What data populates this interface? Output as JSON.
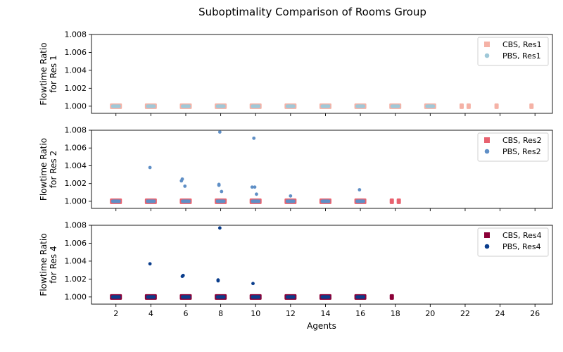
{
  "chart_data": {
    "type": "scatter",
    "title": "Suboptimality Comparison of Rooms Group",
    "xlabel": "Agents",
    "xlim": [
      0.6,
      27.0
    ],
    "xticks": [
      2,
      4,
      6,
      8,
      10,
      12,
      14,
      16,
      18,
      20,
      22,
      24,
      26
    ],
    "panels": [
      {
        "ylabel": "Flowtime Ratio for Res 1",
        "ylabel_lines": [
          "Flowtime Ratio",
          "for Res 1"
        ],
        "ylim": [
          0.9992,
          1.008
        ],
        "yticks": [
          "1.000",
          "1.002",
          "1.004",
          "1.006",
          "1.008"
        ],
        "legend_position": "top-right",
        "series": [
          {
            "name": "CBS, Res1",
            "marker": "square",
            "color": "#f5b2a6",
            "points": [
              [
                2,
                1.0
              ],
              [
                4,
                1.0
              ],
              [
                6,
                1.0
              ],
              [
                8,
                1.0
              ],
              [
                10,
                1.0
              ],
              [
                12,
                1.0
              ],
              [
                14,
                1.0
              ],
              [
                16,
                1.0
              ],
              [
                18,
                1.0
              ],
              [
                20,
                1.0
              ],
              [
                21.8,
                1.0
              ],
              [
                22.2,
                1.0
              ],
              [
                23.8,
                1.0
              ],
              [
                25.8,
                1.0
              ]
            ]
          },
          {
            "name": "PBS, Res1",
            "marker": "circle",
            "color": "#9fc8d8",
            "points": [
              [
                2,
                1.0
              ],
              [
                4,
                1.0
              ],
              [
                6,
                1.0
              ],
              [
                8,
                1.0
              ],
              [
                10,
                1.0
              ],
              [
                12,
                1.0
              ],
              [
                14,
                1.0
              ],
              [
                16,
                1.0
              ],
              [
                18,
                1.0
              ],
              [
                20,
                1.0
              ]
            ]
          }
        ]
      },
      {
        "ylabel": "Flowtime Ratio for Res 2",
        "ylabel_lines": [
          "Flowtime Ratio",
          "for Res 2"
        ],
        "ylim": [
          0.9992,
          1.008
        ],
        "yticks": [
          "1.000",
          "1.002",
          "1.004",
          "1.006",
          "1.008"
        ],
        "legend_position": "top-right",
        "series": [
          {
            "name": "CBS, Res2",
            "marker": "square",
            "color": "#e8626f",
            "points": [
              [
                2,
                1.0
              ],
              [
                4,
                1.0
              ],
              [
                6,
                1.0
              ],
              [
                8,
                1.0
              ],
              [
                10,
                1.0
              ],
              [
                12,
                1.0
              ],
              [
                14,
                1.0
              ],
              [
                16,
                1.0
              ],
              [
                17.8,
                1.0
              ],
              [
                18.2,
                1.0
              ]
            ]
          },
          {
            "name": "PBS, Res2",
            "marker": "circle",
            "color": "#5f8fc6",
            "points": [
              [
                2,
                1.0
              ],
              [
                4,
                1.0
              ],
              [
                6,
                1.0
              ],
              [
                8,
                1.0
              ],
              [
                10,
                1.0
              ],
              [
                12,
                1.0
              ],
              [
                14,
                1.0
              ],
              [
                16,
                1.0
              ],
              [
                3.95,
                1.0038
              ],
              [
                5.8,
                1.0025
              ],
              [
                5.75,
                1.0023
              ],
              [
                5.95,
                1.0017
              ],
              [
                7.9,
                1.0019
              ],
              [
                7.9,
                1.0018
              ],
              [
                8.05,
                1.0011
              ],
              [
                7.95,
                1.0078
              ],
              [
                9.9,
                1.0071
              ],
              [
                9.8,
                1.0016
              ],
              [
                9.95,
                1.0016
              ],
              [
                10.05,
                1.0008
              ],
              [
                12.0,
                1.0006
              ],
              [
                15.95,
                1.0013
              ]
            ]
          }
        ]
      },
      {
        "ylabel": "Flowtime Ratio for Res 4",
        "ylabel_lines": [
          "Flowtime Ratio",
          "for Res 4"
        ],
        "ylim": [
          0.9992,
          1.008
        ],
        "yticks": [
          "1.000",
          "1.002",
          "1.004",
          "1.006",
          "1.008"
        ],
        "legend_position": "top-right",
        "series": [
          {
            "name": "CBS, Res4",
            "marker": "square",
            "color": "#8b0037",
            "points": [
              [
                2,
                1.0
              ],
              [
                4,
                1.0
              ],
              [
                6,
                1.0
              ],
              [
                8,
                1.0
              ],
              [
                10,
                1.0
              ],
              [
                12,
                1.0
              ],
              [
                14,
                1.0
              ],
              [
                16,
                1.0
              ],
              [
                17.8,
                1.0
              ]
            ]
          },
          {
            "name": "PBS, Res4",
            "marker": "circle",
            "color": "#0a3d8c",
            "points": [
              [
                2,
                1.0
              ],
              [
                4,
                1.0
              ],
              [
                6,
                1.0
              ],
              [
                8,
                1.0
              ],
              [
                10,
                1.0
              ],
              [
                12,
                1.0
              ],
              [
                14,
                1.0
              ],
              [
                16,
                1.0
              ],
              [
                3.95,
                1.0037
              ],
              [
                5.85,
                1.0024
              ],
              [
                5.8,
                1.0023
              ],
              [
                7.85,
                1.0019
              ],
              [
                7.85,
                1.0018
              ],
              [
                7.95,
                1.0077
              ],
              [
                9.85,
                1.0015
              ]
            ]
          }
        ]
      }
    ]
  }
}
